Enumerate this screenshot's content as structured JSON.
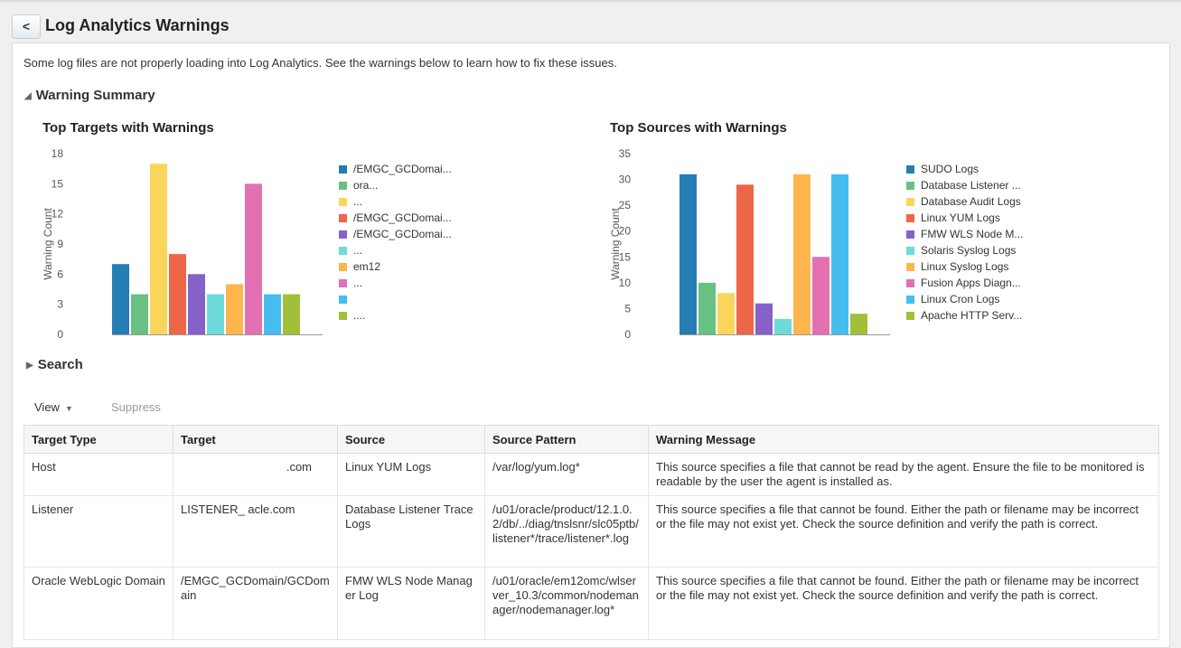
{
  "page": {
    "title": "Log Analytics Warnings",
    "back_label": "<"
  },
  "intro": "Some log files are not properly loading into Log Analytics. See the warnings below to learn how to fix these issues.",
  "sections": {
    "summary": "Warning Summary",
    "search": "Search"
  },
  "colors": [
    "#267db3",
    "#68c182",
    "#fad55c",
    "#ed6647",
    "#8561c8",
    "#6ddbdb",
    "#ffb54d",
    "#e371b2",
    "#47bdef",
    "#a2bf39"
  ],
  "chart_data": [
    {
      "type": "bar",
      "title": "Top Targets with Warnings",
      "ylabel": "Warning Count",
      "ylim": [
        0,
        18
      ],
      "yticks": [
        "0",
        "3",
        "6",
        "9",
        "12",
        "15",
        "18"
      ],
      "legend_placement": "right",
      "series": [
        {
          "name": "/EMGC_GCDomai...",
          "value": 7
        },
        {
          "name": "ora...",
          "value": 4
        },
        {
          "name": "...",
          "value": 17
        },
        {
          "name": "/EMGC_GCDomai...",
          "value": 8
        },
        {
          "name": "/EMGC_GCDomai...",
          "value": 6
        },
        {
          "name": "...",
          "value": 4
        },
        {
          "name": "em12",
          "value": 5
        },
        {
          "name": "...",
          "value": 15
        },
        {
          "name": "",
          "value": 4
        },
        {
          "name": "....",
          "value": 4
        }
      ]
    },
    {
      "type": "bar",
      "title": "Top Sources with Warnings",
      "ylabel": "Warning Count",
      "ylim": [
        0,
        35
      ],
      "yticks": [
        "0",
        "5",
        "10",
        "15",
        "20",
        "25",
        "30",
        "35"
      ],
      "legend_placement": "right",
      "series": [
        {
          "name": "SUDO Logs",
          "value": 31
        },
        {
          "name": "Database Listener ...",
          "value": 10
        },
        {
          "name": "Database Audit Logs",
          "value": 8
        },
        {
          "name": "Linux YUM Logs",
          "value": 29
        },
        {
          "name": "FMW WLS Node M...",
          "value": 6
        },
        {
          "name": "Solaris Syslog Logs",
          "value": 3
        },
        {
          "name": "Linux Syslog Logs",
          "value": 31
        },
        {
          "name": "Fusion Apps Diagn...",
          "value": 15
        },
        {
          "name": "Linux Cron Logs",
          "value": 31
        },
        {
          "name": "Apache HTTP Serv...",
          "value": 4
        }
      ]
    }
  ],
  "toolbar": {
    "view_label": "View",
    "suppress_label": "Suppress"
  },
  "table": {
    "columns": [
      "Target Type",
      "Target",
      "Source",
      "Source Pattern",
      "Warning Message"
    ],
    "rows": [
      {
        "target_type": "Host",
        "target": ".com",
        "source": "Linux YUM Logs",
        "pattern": "/var/log/yum.log*",
        "message": "This source specifies a file that cannot be read by the agent. Ensure the file to be monitored is readable by the user the agent is installed as."
      },
      {
        "target_type": "Listener",
        "target": "LISTENER_ acle.com",
        "source": "Database Listener Trace Logs",
        "pattern": "/u01/oracle/product/12.1.0.2/db/../diag/tnslsnr/slc05ptb/listener*/trace/listener*.log",
        "message": "This source specifies a file that cannot be found. Either the path or filename may be incorrect or the file may not exist yet. Check the source definition and verify the path is correct."
      },
      {
        "target_type": "Oracle WebLogic Domain",
        "target": "/EMGC_GCDomain/GCDomain",
        "source": "FMW WLS Node Manager Log",
        "pattern": "/u01/oracle/em12omc/wlserver_10.3/common/nodemanager/nodemanager.log*",
        "message": "This source specifies a file that cannot be found. Either the path or filename may be incorrect or the file may not exist yet. Check the source definition and verify the path is correct."
      }
    ]
  }
}
